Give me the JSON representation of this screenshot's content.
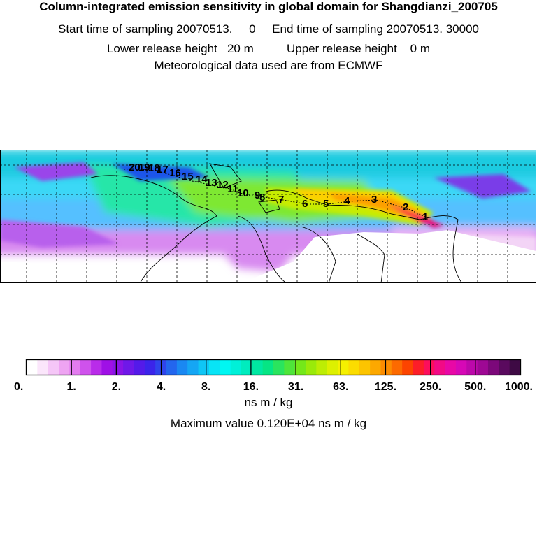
{
  "header": {
    "title": "Column-integrated emission sensitivity in global domain for Shangdianzi_200705",
    "sampling_line": "Start time of sampling 20070513.     0     End time of sampling 20070513. 30000",
    "release_line": "Lower release height   20 m          Upper release height    0 m",
    "met_line": "Meteorological data used are from ECMWF"
  },
  "map": {
    "trajectory_labels": [
      "1",
      "2",
      "3",
      "4",
      "5",
      "6",
      "7",
      "8",
      "9",
      "10",
      "11",
      "12",
      "13",
      "14",
      "15",
      "16",
      "17",
      "18",
      "19",
      "20"
    ]
  },
  "colorbar": {
    "tick_labels": [
      "0.",
      "1.",
      "2.",
      "4.",
      "8.",
      "16.",
      "31.",
      "63.",
      "125.",
      "250.",
      "500.",
      "1000."
    ],
    "unit_label": "ns m / kg",
    "colors": [
      "#ffffff",
      "#fbe6fb",
      "#f5c6f7",
      "#eea4f2",
      "#e37cef",
      "#cf52ec",
      "#b92ce9",
      "#9f10e6",
      "#8a14e6",
      "#6f18e8",
      "#541ae9",
      "#3b24ea",
      "#2f44ec",
      "#2366ee",
      "#1a88f2",
      "#15a6f4",
      "#0fc6f5",
      "#08e4f6",
      "#00f7f2",
      "#00f0d8",
      "#00ecbe",
      "#00e8a2",
      "#06e584",
      "#2ae45e",
      "#4ee53a",
      "#74e81a",
      "#9aea0a",
      "#bded04",
      "#ddf000",
      "#f5f000",
      "#fbdc00",
      "#fcc400",
      "#fca800",
      "#fc8c00",
      "#fc6a00",
      "#fc4400",
      "#fc1e28",
      "#fc0e5c",
      "#f20a86",
      "#e808a6",
      "#d608b6",
      "#bc08aa",
      "#9e0894",
      "#7c087a",
      "#5a0a5e",
      "#3e0a44"
    ]
  },
  "maximum_line": "Maximum value  0.120E+04 ns m / kg"
}
